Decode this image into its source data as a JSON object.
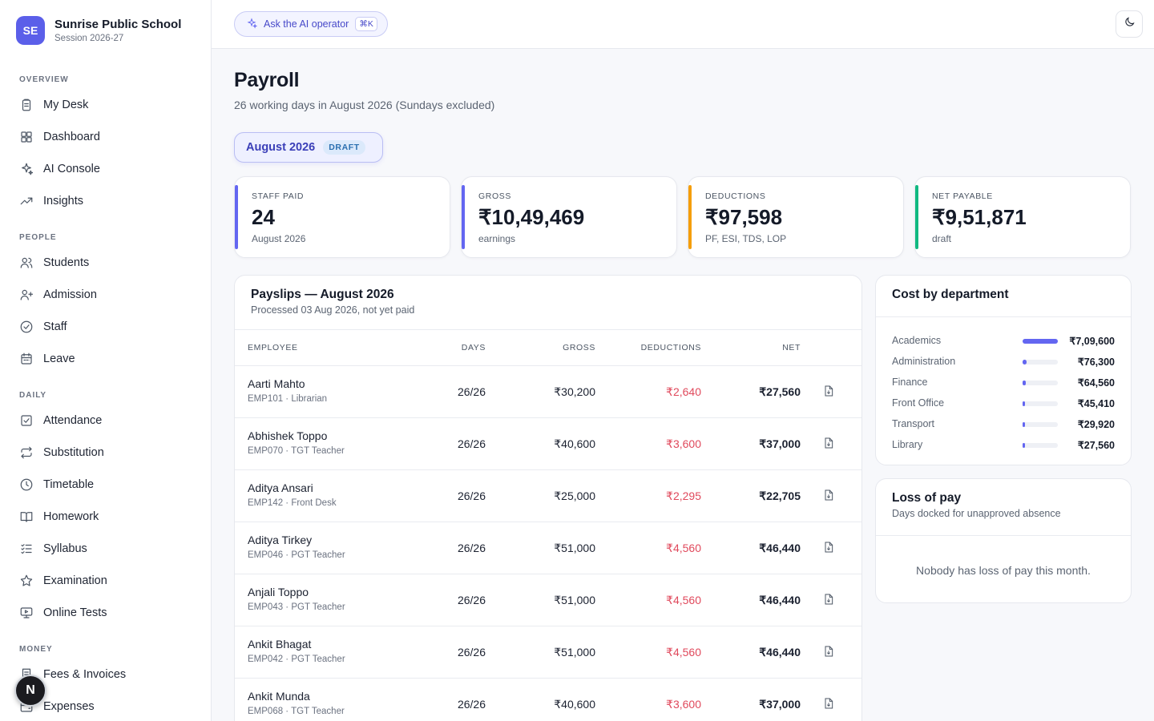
{
  "brand": {
    "initials": "SE",
    "name": "Sunrise Public School",
    "session": "Session 2026-27"
  },
  "sidebar": {
    "sections": [
      {
        "title": "OVERVIEW",
        "items": [
          {
            "label": "My Desk",
            "icon": "clipboard-icon"
          },
          {
            "label": "Dashboard",
            "icon": "grid-icon"
          },
          {
            "label": "AI Console",
            "icon": "sparkle-icon"
          },
          {
            "label": "Insights",
            "icon": "trending-up-icon"
          }
        ]
      },
      {
        "title": "PEOPLE",
        "items": [
          {
            "label": "Students",
            "icon": "users-icon"
          },
          {
            "label": "Admission",
            "icon": "user-plus-icon"
          },
          {
            "label": "Staff",
            "icon": "check-circle-icon"
          },
          {
            "label": "Leave",
            "icon": "calendar-icon"
          }
        ]
      },
      {
        "title": "DAILY",
        "items": [
          {
            "label": "Attendance",
            "icon": "checkbox-icon"
          },
          {
            "label": "Substitution",
            "icon": "repeat-icon"
          },
          {
            "label": "Timetable",
            "icon": "clock-icon"
          },
          {
            "label": "Homework",
            "icon": "book-icon"
          },
          {
            "label": "Syllabus",
            "icon": "list-check-icon"
          },
          {
            "label": "Examination",
            "icon": "star-icon"
          },
          {
            "label": "Online Tests",
            "icon": "monitor-icon"
          }
        ]
      },
      {
        "title": "MONEY",
        "items": [
          {
            "label": "Fees & Invoices",
            "icon": "receipt-icon"
          },
          {
            "label": "Expenses",
            "icon": "wallet-icon"
          }
        ]
      }
    ],
    "fab_letter": "N"
  },
  "topbar": {
    "ai_label": "Ask the AI operator",
    "ai_shortcut": "⌘K"
  },
  "page": {
    "title": "Payroll",
    "subtitle": "26 working days in August 2026 (Sundays excluded)",
    "period": "August 2026",
    "period_status": "DRAFT"
  },
  "stats": [
    {
      "label": "STAFF PAID",
      "value": "24",
      "note": "August 2026",
      "color": "#6366f1"
    },
    {
      "label": "GROSS",
      "value": "₹10,49,469",
      "note": "earnings",
      "color": "#6366f1"
    },
    {
      "label": "DEDUCTIONS",
      "value": "₹97,598",
      "note": "PF, ESI, TDS, LOP",
      "color": "#f59e0b"
    },
    {
      "label": "NET PAYABLE",
      "value": "₹9,51,871",
      "note": "draft",
      "color": "#10b981"
    }
  ],
  "payslips": {
    "title": "Payslips — August 2026",
    "subtitle": "Processed 03 Aug 2026, not yet paid",
    "columns": [
      "EMPLOYEE",
      "DAYS",
      "GROSS",
      "DEDUCTIONS",
      "NET"
    ],
    "rows": [
      {
        "name": "Aarti Mahto",
        "meta": "EMP101 · Librarian",
        "days": "26/26",
        "gross": "₹30,200",
        "deductions": "₹2,640",
        "net": "₹27,560"
      },
      {
        "name": "Abhishek Toppo",
        "meta": "EMP070 · TGT Teacher",
        "days": "26/26",
        "gross": "₹40,600",
        "deductions": "₹3,600",
        "net": "₹37,000"
      },
      {
        "name": "Aditya Ansari",
        "meta": "EMP142 · Front Desk",
        "days": "26/26",
        "gross": "₹25,000",
        "deductions": "₹2,295",
        "net": "₹22,705"
      },
      {
        "name": "Aditya Tirkey",
        "meta": "EMP046 · PGT Teacher",
        "days": "26/26",
        "gross": "₹51,000",
        "deductions": "₹4,560",
        "net": "₹46,440"
      },
      {
        "name": "Anjali Toppo",
        "meta": "EMP043 · PGT Teacher",
        "days": "26/26",
        "gross": "₹51,000",
        "deductions": "₹4,560",
        "net": "₹46,440"
      },
      {
        "name": "Ankit Bhagat",
        "meta": "EMP042 · PGT Teacher",
        "days": "26/26",
        "gross": "₹51,000",
        "deductions": "₹4,560",
        "net": "₹46,440"
      },
      {
        "name": "Ankit Munda",
        "meta": "EMP068 · TGT Teacher",
        "days": "26/26",
        "gross": "₹40,600",
        "deductions": "₹3,600",
        "net": "₹37,000"
      }
    ]
  },
  "departments": {
    "title": "Cost by department",
    "rows": [
      {
        "name": "Academics",
        "amount": "₹7,09,600",
        "value": 709600
      },
      {
        "name": "Administration",
        "amount": "₹76,300",
        "value": 76300
      },
      {
        "name": "Finance",
        "amount": "₹64,560",
        "value": 64560
      },
      {
        "name": "Front Office",
        "amount": "₹45,410",
        "value": 45410
      },
      {
        "name": "Transport",
        "amount": "₹29,920",
        "value": 29920
      },
      {
        "name": "Library",
        "amount": "₹27,560",
        "value": 27560
      }
    ]
  },
  "loss_of_pay": {
    "title": "Loss of pay",
    "subtitle": "Days docked for unapproved absence",
    "empty": "Nobody has loss of pay this month."
  }
}
